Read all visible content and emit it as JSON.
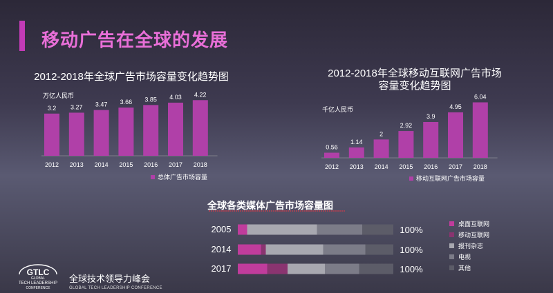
{
  "page": {
    "title": "移动广告在全球的发展",
    "logo": {
      "abbr": "GTLC",
      "sub": "GLOBAL",
      "line1": "TECH LEADERSHIP",
      "line2": "CONFERENCE",
      "name_cn": "全球技术领导力峰会",
      "name_en": "GLOBAL TECH LEADERSHIP CONFERENCE"
    }
  },
  "colors": {
    "bar": "#b040a8",
    "desktop": "#c03c9c",
    "mobile": "#8a3470",
    "print": "#a8a8b0",
    "tv": "#7c7c88",
    "other": "#5c5c68",
    "accent": "#c23bb6"
  },
  "chart_data": [
    {
      "type": "bar",
      "title": "2012-2018年全球广告市场容量变化趋势图",
      "ylabel": "万亿人民币",
      "categories": [
        "2012",
        "2013",
        "2014",
        "2015",
        "2016",
        "2017",
        "2018"
      ],
      "values": [
        3.2,
        3.27,
        3.47,
        3.66,
        3.85,
        4.03,
        4.22
      ],
      "value_labels": [
        "3.2",
        "3.27",
        "3.47",
        "3.66",
        "3.85",
        "4.03",
        "4.22"
      ],
      "legend": "总体广告市场容量",
      "ylim": [
        0,
        4.6
      ]
    },
    {
      "type": "bar",
      "title": "2012-2018年全球移动互联网广告市场容量变化趋势图",
      "title_lines": [
        "2012-2018年全球移动互联网广告市场",
        "容量变化趋势图"
      ],
      "ylabel": "千亿人民币",
      "categories": [
        "2012",
        "2013",
        "2014",
        "2015",
        "2016",
        "2017",
        "2018"
      ],
      "values": [
        0.56,
        1.14,
        2,
        2.92,
        3.9,
        4.95,
        6.04
      ],
      "value_labels": [
        "0.56",
        "1.14",
        "2",
        "2.92",
        "3.9",
        "4.95",
        "6.04"
      ],
      "legend": "移动互联网广告市场容量",
      "ylim": [
        0,
        6.6
      ]
    },
    {
      "type": "bar",
      "orientation": "horizontal-stacked",
      "title": "全球各类媒体广告市场容量图",
      "categories": [
        "2005",
        "2014",
        "2017"
      ],
      "totals": [
        "100%",
        "100%",
        "100%"
      ],
      "series": [
        {
          "name": "桌面互联网",
          "values": [
            6,
            15,
            19
          ]
        },
        {
          "name": "移动互联网",
          "values": [
            0,
            3,
            13
          ]
        },
        {
          "name": "报刊杂志",
          "values": [
            45,
            37,
            24
          ]
        },
        {
          "name": "电视",
          "values": [
            29,
            27,
            22
          ]
        },
        {
          "name": "其他",
          "values": [
            20,
            18,
            22
          ]
        }
      ]
    }
  ]
}
